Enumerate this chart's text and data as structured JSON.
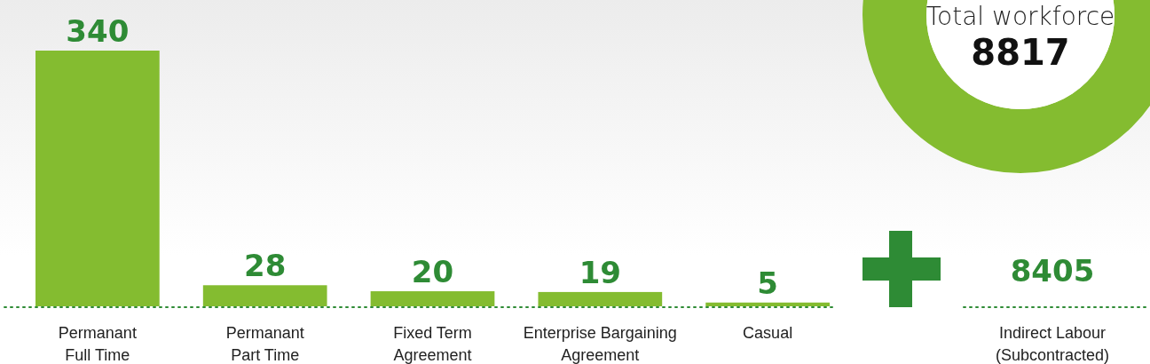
{
  "chart_data": [
    {
      "type": "bar",
      "categories": [
        "Permanant\nFull Time",
        "Permanant\nPart Time",
        "Fixed Term\nAgreement",
        "Enterprise Bargaining\nAgreement",
        "Casual"
      ],
      "values": [
        340,
        28,
        20,
        19,
        5
      ],
      "color": "#84bc30",
      "data_labels": true
    },
    {
      "type": "other",
      "annotations": [
        "8405",
        "Indirect Labour\n(Subcontracted)",
        "Total workforce",
        "8817"
      ]
    }
  ]
}
